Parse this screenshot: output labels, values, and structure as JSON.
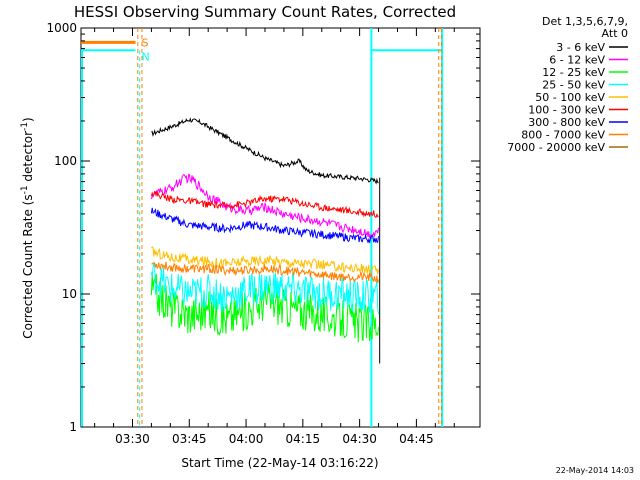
{
  "chart_data": {
    "type": "line",
    "title": "HESSI Observing Summary Count Rates, Corrected",
    "xlabel": "Start Time (22-May-14 03:16:22)",
    "ylabel_main": "Corrected Count Rate (s",
    "ylabel_sup1": "-1",
    "ylabel_mid": " detector",
    "ylabel_sup2": "-1",
    "ylabel_end": ")",
    "yscale": "log",
    "ylim": [
      1,
      1000
    ],
    "xlim_minutes": [
      196.4,
      301.8
    ],
    "x_ticks": [
      {
        "value": 210,
        "label": "03:30"
      },
      {
        "value": 225,
        "label": "03:45"
      },
      {
        "value": 240,
        "label": "04:00"
      },
      {
        "value": 255,
        "label": "04:15"
      },
      {
        "value": 270,
        "label": "04:30"
      },
      {
        "value": 285,
        "label": "04:45"
      }
    ],
    "y_ticks": [
      {
        "value": 1,
        "label": "1"
      },
      {
        "value": 10,
        "label": "10"
      },
      {
        "value": 100,
        "label": "100"
      },
      {
        "value": 1000,
        "label": "1000"
      }
    ],
    "legend_header": [
      "Det 1,3,5,6,7,9,",
      "Att 0"
    ],
    "legend_position": "right",
    "series": [
      {
        "name": "3 - 6 keV",
        "color": "#000000",
        "x": [
          215,
          220,
          225,
          228,
          235,
          240,
          245,
          250,
          254,
          256,
          260,
          265,
          270,
          273,
          275
        ],
        "values": [
          160,
          180,
          205,
          195,
          150,
          125,
          105,
          92,
          100,
          85,
          78,
          76,
          74,
          72,
          70
        ]
      },
      {
        "name": "6 - 12 keV",
        "color": "#ff00ff",
        "x": [
          215,
          220,
          224,
          226,
          230,
          235,
          240,
          245,
          250,
          255,
          260,
          265,
          270,
          273,
          275
        ],
        "values": [
          55,
          62,
          75,
          72,
          55,
          45,
          42,
          45,
          40,
          37,
          35,
          32,
          30,
          28,
          30
        ]
      },
      {
        "name": "12 - 25 keV",
        "color": "#00ff00",
        "x": [
          215,
          220,
          225,
          230,
          235,
          240,
          245,
          250,
          255,
          260,
          265,
          270,
          275
        ],
        "values": [
          11,
          8,
          7,
          7.5,
          6.5,
          7.5,
          9,
          8,
          7.5,
          7,
          6.5,
          6,
          6
        ]
      },
      {
        "name": "25 - 50 keV",
        "color": "#00ffff",
        "x": [
          215,
          220,
          225,
          230,
          235,
          240,
          245,
          250,
          255,
          260,
          265,
          270,
          275
        ],
        "values": [
          14,
          11,
          10,
          10.5,
          9.5,
          10.5,
          11.5,
          11,
          10.5,
          10,
          10,
          9.5,
          9.5
        ]
      },
      {
        "name": "50 - 100 keV",
        "color": "#ffbf00",
        "x": [
          215,
          220,
          225,
          230,
          235,
          240,
          245,
          250,
          255,
          260,
          265,
          270,
          275
        ],
        "values": [
          21,
          19,
          18,
          17.5,
          17,
          17.5,
          18,
          17.5,
          17,
          16.5,
          16,
          15.5,
          15
        ]
      },
      {
        "name": "100 - 300 keV",
        "color": "#ff0000",
        "x": [
          215,
          220,
          225,
          230,
          235,
          240,
          245,
          250,
          255,
          260,
          265,
          270,
          275
        ],
        "values": [
          58,
          52,
          50,
          47,
          46,
          48,
          52,
          52,
          48,
          45,
          43,
          41,
          40
        ]
      },
      {
        "name": "300 - 800 keV",
        "color": "#0000ff",
        "x": [
          215,
          220,
          225,
          230,
          235,
          240,
          245,
          250,
          255,
          260,
          265,
          270,
          275
        ],
        "values": [
          42,
          37,
          33,
          32,
          31,
          33,
          32,
          30,
          29,
          28,
          27,
          26,
          26
        ]
      },
      {
        "name": "800 - 7000 keV",
        "color": "#ff7f00",
        "x": [
          215,
          220,
          225,
          230,
          235,
          240,
          245,
          250,
          255,
          260,
          265,
          270,
          275
        ],
        "values": [
          17,
          16,
          15.5,
          15.5,
          15,
          15,
          15.5,
          15,
          14.5,
          14,
          13.5,
          13.5,
          13
        ]
      },
      {
        "name": "7000 - 20000 keV",
        "color": "#9f6f00",
        "x": [],
        "values": []
      }
    ],
    "markers": [
      {
        "label": "S",
        "color": "#ff7f00",
        "dashed": true,
        "x_start": 196.4,
        "x_end": 210.8,
        "level": 780
      },
      {
        "label": "N",
        "color": "#00ffff",
        "dashed": false,
        "x_start": 196.4,
        "x_end": 210.8,
        "level": 680
      }
    ],
    "timestamp": "22-May-2014 14:03"
  }
}
